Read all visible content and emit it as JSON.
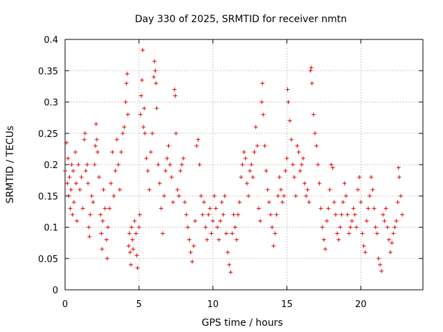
{
  "chart_data": {
    "type": "scatter",
    "title": "Day 330 of 2025, SRMTID for receiver nmtn",
    "xlabel": "GPS time / hours",
    "ylabel": "SRMTID / TECUs",
    "xlim": [
      0,
      24.2
    ],
    "ylim": [
      0,
      0.4
    ],
    "xticks": [
      0,
      5,
      10,
      15,
      20
    ],
    "yticks": [
      0,
      0.05,
      0.1,
      0.15,
      0.2,
      0.25,
      0.3,
      0.35,
      0.4
    ],
    "xtick_labels": [
      "0",
      "5",
      "10",
      "15",
      "20"
    ],
    "ytick_labels": [
      "0",
      "0.05",
      "0.1",
      "0.15",
      "0.2",
      "0.25",
      "0.3",
      "0.35",
      "0.4"
    ],
    "grid": true,
    "marker": "+",
    "color": "#e00000",
    "series": [
      {
        "name": "SRMTID",
        "points": [
          [
            0.0,
            0.19
          ],
          [
            0.1,
            0.235
          ],
          [
            0.15,
            0.17
          ],
          [
            0.2,
            0.21
          ],
          [
            0.25,
            0.15
          ],
          [
            0.3,
            0.18
          ],
          [
            0.35,
            0.13
          ],
          [
            0.4,
            0.16
          ],
          [
            0.45,
            0.2
          ],
          [
            0.5,
            0.12
          ],
          [
            0.55,
            0.19
          ],
          [
            0.6,
            0.14
          ],
          [
            0.7,
            0.22
          ],
          [
            0.75,
            0.17
          ],
          [
            0.8,
            0.11
          ],
          [
            0.9,
            0.2
          ],
          [
            1.0,
            0.16
          ],
          [
            1.1,
            0.18
          ],
          [
            1.2,
            0.13
          ],
          [
            1.3,
            0.24
          ],
          [
            1.35,
            0.25
          ],
          [
            1.4,
            0.19
          ],
          [
            1.5,
            0.2
          ],
          [
            1.55,
            0.17
          ],
          [
            1.6,
            0.1
          ],
          [
            1.65,
            0.085
          ],
          [
            1.7,
            0.12
          ],
          [
            1.8,
            0.15
          ],
          [
            1.9,
            0.14
          ],
          [
            2.0,
            0.2
          ],
          [
            2.05,
            0.23
          ],
          [
            2.1,
            0.265
          ],
          [
            2.15,
            0.24
          ],
          [
            2.2,
            0.22
          ],
          [
            2.3,
            0.18
          ],
          [
            2.4,
            0.12
          ],
          [
            2.45,
            0.09
          ],
          [
            2.5,
            0.065
          ],
          [
            2.55,
            0.11
          ],
          [
            2.6,
            0.16
          ],
          [
            2.7,
            0.13
          ],
          [
            2.8,
            0.08
          ],
          [
            2.85,
            0.05
          ],
          [
            2.9,
            0.1
          ],
          [
            3.0,
            0.13
          ],
          [
            3.1,
            0.17
          ],
          [
            3.2,
            0.22
          ],
          [
            3.3,
            0.15
          ],
          [
            3.4,
            0.19
          ],
          [
            3.5,
            0.24
          ],
          [
            3.6,
            0.2
          ],
          [
            3.7,
            0.16
          ],
          [
            3.8,
            0.22
          ],
          [
            3.9,
            0.25
          ],
          [
            4.0,
            0.26
          ],
          [
            4.1,
            0.3
          ],
          [
            4.15,
            0.33
          ],
          [
            4.2,
            0.345
          ],
          [
            4.25,
            0.28
          ],
          [
            4.3,
            0.07
          ],
          [
            4.35,
            0.09
          ],
          [
            4.4,
            0.06
          ],
          [
            4.45,
            0.04
          ],
          [
            4.5,
            0.1
          ],
          [
            4.55,
            0.08
          ],
          [
            4.6,
            0.065
          ],
          [
            4.7,
            0.11
          ],
          [
            4.8,
            0.09
          ],
          [
            4.85,
            0.055
          ],
          [
            4.9,
            0.035
          ],
          [
            5.0,
            0.1
          ],
          [
            5.05,
            0.12
          ],
          [
            5.1,
            0.28
          ],
          [
            5.15,
            0.31
          ],
          [
            5.2,
            0.335
          ],
          [
            5.25,
            0.383
          ],
          [
            5.3,
            0.26
          ],
          [
            5.35,
            0.29
          ],
          [
            5.4,
            0.25
          ],
          [
            5.5,
            0.21
          ],
          [
            5.6,
            0.19
          ],
          [
            5.7,
            0.16
          ],
          [
            5.8,
            0.22
          ],
          [
            5.9,
            0.25
          ],
          [
            6.0,
            0.34
          ],
          [
            6.05,
            0.365
          ],
          [
            6.1,
            0.35
          ],
          [
            6.15,
            0.33
          ],
          [
            6.2,
            0.29
          ],
          [
            6.3,
            0.2
          ],
          [
            6.4,
            0.17
          ],
          [
            6.5,
            0.13
          ],
          [
            6.6,
            0.09
          ],
          [
            6.7,
            0.15
          ],
          [
            6.8,
            0.19
          ],
          [
            6.9,
            0.21
          ],
          [
            7.0,
            0.23
          ],
          [
            7.1,
            0.2
          ],
          [
            7.2,
            0.18
          ],
          [
            7.3,
            0.14
          ],
          [
            7.4,
            0.32
          ],
          [
            7.45,
            0.31
          ],
          [
            7.5,
            0.25
          ],
          [
            7.6,
            0.16
          ],
          [
            7.7,
            0.15
          ],
          [
            7.8,
            0.19
          ],
          [
            7.9,
            0.2
          ],
          [
            8.0,
            0.21
          ],
          [
            8.1,
            0.14
          ],
          [
            8.2,
            0.12
          ],
          [
            8.3,
            0.1
          ],
          [
            8.4,
            0.08
          ],
          [
            8.5,
            0.06
          ],
          [
            8.6,
            0.045
          ],
          [
            8.7,
            0.07
          ],
          [
            8.8,
            0.11
          ],
          [
            8.9,
            0.23
          ],
          [
            9.0,
            0.24
          ],
          [
            9.1,
            0.2
          ],
          [
            9.2,
            0.15
          ],
          [
            9.3,
            0.12
          ],
          [
            9.4,
            0.14
          ],
          [
            9.5,
            0.1
          ],
          [
            9.6,
            0.08
          ],
          [
            9.7,
            0.12
          ],
          [
            9.8,
            0.13
          ],
          [
            9.9,
            0.09
          ],
          [
            10.0,
            0.11
          ],
          [
            10.1,
            0.15
          ],
          [
            10.2,
            0.13
          ],
          [
            10.3,
            0.1
          ],
          [
            10.4,
            0.08
          ],
          [
            10.5,
            0.11
          ],
          [
            10.6,
            0.14
          ],
          [
            10.7,
            0.12
          ],
          [
            10.8,
            0.15
          ],
          [
            10.9,
            0.09
          ],
          [
            11.0,
            0.06
          ],
          [
            11.1,
            0.04
          ],
          [
            11.2,
            0.028
          ],
          [
            11.3,
            0.09
          ],
          [
            11.4,
            0.12
          ],
          [
            11.5,
            0.1
          ],
          [
            11.6,
            0.08
          ],
          [
            11.7,
            0.12
          ],
          [
            11.8,
            0.14
          ],
          [
            11.9,
            0.18
          ],
          [
            12.0,
            0.2
          ],
          [
            12.1,
            0.22
          ],
          [
            12.2,
            0.21
          ],
          [
            12.3,
            0.17
          ],
          [
            12.4,
            0.15
          ],
          [
            12.5,
            0.19
          ],
          [
            12.6,
            0.2
          ],
          [
            12.7,
            0.18
          ],
          [
            12.8,
            0.22
          ],
          [
            12.9,
            0.26
          ],
          [
            13.0,
            0.23
          ],
          [
            13.1,
            0.13
          ],
          [
            13.2,
            0.11
          ],
          [
            13.3,
            0.3
          ],
          [
            13.35,
            0.33
          ],
          [
            13.4,
            0.28
          ],
          [
            13.5,
            0.23
          ],
          [
            13.6,
            0.19
          ],
          [
            13.7,
            0.16
          ],
          [
            13.8,
            0.14
          ],
          [
            13.9,
            0.12
          ],
          [
            14.0,
            0.1
          ],
          [
            14.1,
            0.07
          ],
          [
            14.2,
            0.09
          ],
          [
            14.3,
            0.12
          ],
          [
            14.4,
            0.15
          ],
          [
            14.5,
            0.18
          ],
          [
            14.6,
            0.16
          ],
          [
            14.7,
            0.14
          ],
          [
            14.8,
            0.15
          ],
          [
            14.9,
            0.19
          ],
          [
            15.0,
            0.21
          ],
          [
            15.05,
            0.32
          ],
          [
            15.1,
            0.3
          ],
          [
            15.2,
            0.27
          ],
          [
            15.3,
            0.24
          ],
          [
            15.4,
            0.2
          ],
          [
            15.5,
            0.18
          ],
          [
            15.6,
            0.15
          ],
          [
            15.7,
            0.23
          ],
          [
            15.8,
            0.22
          ],
          [
            15.9,
            0.19
          ],
          [
            16.0,
            0.2
          ],
          [
            16.1,
            0.21
          ],
          [
            16.2,
            0.17
          ],
          [
            16.3,
            0.15
          ],
          [
            16.4,
            0.16
          ],
          [
            16.5,
            0.14
          ],
          [
            16.6,
            0.35
          ],
          [
            16.65,
            0.355
          ],
          [
            16.7,
            0.33
          ],
          [
            16.8,
            0.28
          ],
          [
            16.9,
            0.25
          ],
          [
            17.0,
            0.23
          ],
          [
            17.1,
            0.2
          ],
          [
            17.2,
            0.17
          ],
          [
            17.3,
            0.13
          ],
          [
            17.4,
            0.1
          ],
          [
            17.5,
            0.08
          ],
          [
            17.6,
            0.065
          ],
          [
            17.7,
            0.11
          ],
          [
            17.8,
            0.13
          ],
          [
            17.9,
            0.16
          ],
          [
            18.0,
            0.2
          ],
          [
            18.1,
            0.195
          ],
          [
            18.2,
            0.14
          ],
          [
            18.3,
            0.12
          ],
          [
            18.4,
            0.09
          ],
          [
            18.5,
            0.08
          ],
          [
            18.6,
            0.1
          ],
          [
            18.7,
            0.12
          ],
          [
            18.8,
            0.14
          ],
          [
            18.9,
            0.17
          ],
          [
            19.0,
            0.15
          ],
          [
            19.1,
            0.12
          ],
          [
            19.2,
            0.09
          ],
          [
            19.3,
            0.1
          ],
          [
            19.4,
            0.11
          ],
          [
            19.5,
            0.13
          ],
          [
            19.6,
            0.12
          ],
          [
            19.7,
            0.1
          ],
          [
            19.8,
            0.16
          ],
          [
            19.9,
            0.18
          ],
          [
            20.0,
            0.14
          ],
          [
            20.1,
            0.09
          ],
          [
            20.2,
            0.07
          ],
          [
            20.3,
            0.06
          ],
          [
            20.4,
            0.11
          ],
          [
            20.5,
            0.13
          ],
          [
            20.6,
            0.15
          ],
          [
            20.7,
            0.18
          ],
          [
            20.8,
            0.16
          ],
          [
            20.9,
            0.13
          ],
          [
            21.0,
            0.1
          ],
          [
            21.1,
            0.09
          ],
          [
            21.2,
            0.05
          ],
          [
            21.3,
            0.04
          ],
          [
            21.4,
            0.03
          ],
          [
            21.5,
            0.12
          ],
          [
            21.6,
            0.11
          ],
          [
            21.7,
            0.13
          ],
          [
            21.8,
            0.1
          ],
          [
            21.9,
            0.08
          ],
          [
            22.0,
            0.06
          ],
          [
            22.1,
            0.075
          ],
          [
            22.2,
            0.09
          ],
          [
            22.3,
            0.1
          ],
          [
            22.4,
            0.11
          ],
          [
            22.5,
            0.14
          ],
          [
            22.55,
            0.195
          ],
          [
            22.6,
            0.18
          ],
          [
            22.7,
            0.15
          ],
          [
            22.8,
            0.12
          ]
        ]
      }
    ]
  }
}
